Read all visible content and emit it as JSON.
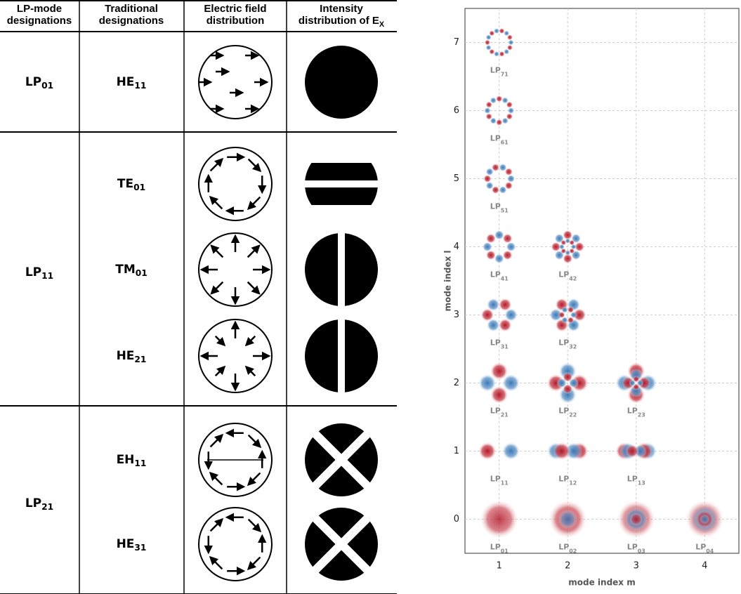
{
  "table": {
    "headers": [
      [
        {
          "main": "LP-mode"
        },
        {
          "main": "designations"
        }
      ],
      [
        {
          "main": "Traditional"
        },
        {
          "main": "designations"
        }
      ],
      [
        {
          "main": "Electric field"
        },
        {
          "main": "distribution"
        }
      ],
      [
        {
          "main": "Intensity"
        },
        {
          "main": "distribution of E",
          "sub": "X"
        }
      ]
    ],
    "groups": [
      {
        "lp": {
          "main": "LP",
          "sub": "01"
        },
        "modes": [
          {
            "main": "HE",
            "sub": "11"
          }
        ]
      },
      {
        "lp": {
          "main": "LP",
          "sub": "11"
        },
        "modes": [
          {
            "main": "TE",
            "sub": "01"
          },
          {
            "main": "TM",
            "sub": "01"
          },
          {
            "main": "HE",
            "sub": "21"
          }
        ]
      },
      {
        "lp": {
          "main": "LP",
          "sub": "21"
        },
        "modes": [
          {
            "main": "EH",
            "sub": "11"
          },
          {
            "main": "HE",
            "sub": "31"
          }
        ]
      }
    ]
  },
  "chart_data": {
    "type": "mode-map",
    "xlabel": "mode index m",
    "ylabel": "mode index l",
    "xlim": [
      0.5,
      4.5
    ],
    "ylim": [
      -0.5,
      7.5
    ],
    "xticks": [
      1,
      2,
      3,
      4
    ],
    "yticks": [
      0,
      1,
      2,
      3,
      4,
      5,
      6,
      7
    ],
    "grid": true,
    "points": [
      {
        "m": 1,
        "l": 7,
        "label": {
          "main": "LP",
          "sub": "71"
        }
      },
      {
        "m": 1,
        "l": 6,
        "label": {
          "main": "LP",
          "sub": "61"
        }
      },
      {
        "m": 1,
        "l": 5,
        "label": {
          "main": "LP",
          "sub": "51"
        }
      },
      {
        "m": 1,
        "l": 4,
        "label": {
          "main": "LP",
          "sub": "41"
        }
      },
      {
        "m": 2,
        "l": 4,
        "label": {
          "main": "LP",
          "sub": "42"
        }
      },
      {
        "m": 1,
        "l": 3,
        "label": {
          "main": "LP",
          "sub": "31"
        }
      },
      {
        "m": 2,
        "l": 3,
        "label": {
          "main": "LP",
          "sub": "32"
        }
      },
      {
        "m": 1,
        "l": 2,
        "label": {
          "main": "LP",
          "sub": "21"
        }
      },
      {
        "m": 2,
        "l": 2,
        "label": {
          "main": "LP",
          "sub": "22"
        }
      },
      {
        "m": 3,
        "l": 2,
        "label": {
          "main": "LP",
          "sub": "23"
        }
      },
      {
        "m": 1,
        "l": 1,
        "label": {
          "main": "LP",
          "sub": "11"
        }
      },
      {
        "m": 2,
        "l": 1,
        "label": {
          "main": "LP",
          "sub": "12"
        }
      },
      {
        "m": 3,
        "l": 1,
        "label": {
          "main": "LP",
          "sub": "13"
        }
      },
      {
        "m": 1,
        "l": 0,
        "label": {
          "main": "LP",
          "sub": "01"
        }
      },
      {
        "m": 2,
        "l": 0,
        "label": {
          "main": "LP",
          "sub": "02"
        }
      },
      {
        "m": 3,
        "l": 0,
        "label": {
          "main": "LP",
          "sub": "03"
        }
      },
      {
        "m": 4,
        "l": 0,
        "label": {
          "main": "LP",
          "sub": "04"
        }
      }
    ]
  }
}
